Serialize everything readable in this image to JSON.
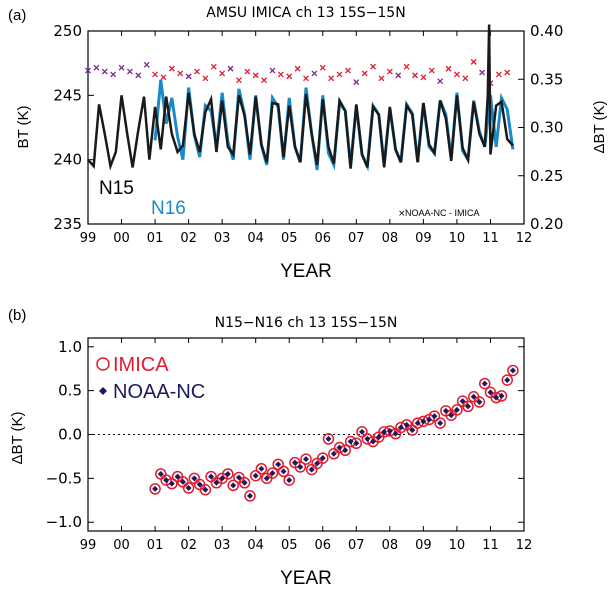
{
  "panels": {
    "a": "(a)",
    "b": "(b)"
  },
  "colors": {
    "n15": "#1a1a1a",
    "n16": "#1a8ac8",
    "diff_red": "#e31b2e",
    "diff_purple": "#7a2a8e",
    "imica": "#e31b2e",
    "noaa": "#1c1a5c"
  },
  "chart_data": [
    {
      "type": "line",
      "title": "AMSU IMICA ch 13 15S−15N",
      "xlabel": "YEAR",
      "ylabel": "BT (K)",
      "ylabel_right": "ΔBT (K)",
      "x_ticks": [
        "99",
        "00",
        "01",
        "02",
        "03",
        "04",
        "05",
        "06",
        "07",
        "08",
        "09",
        "10",
        "11",
        "12"
      ],
      "xlim": [
        1999,
        2012
      ],
      "y_ticks": [
        "235",
        "240",
        "245",
        "250"
      ],
      "ylim": [
        235,
        250
      ],
      "y2_ticks": [
        "0.20",
        "0.25",
        "0.30",
        "0.35",
        "0.40"
      ],
      "y2lim": [
        0.2,
        0.4
      ],
      "annotations": {
        "n15": "N15",
        "n16": "N16",
        "legend": "NOAA-NC - IMICA"
      },
      "series": [
        {
          "name": "N15",
          "x": [
            1999.0,
            1999.17,
            1999.33,
            1999.5,
            1999.67,
            1999.83,
            2000.0,
            2000.17,
            2000.33,
            2000.5,
            2000.67,
            2000.83,
            2001.0,
            2001.17,
            2001.33,
            2001.5,
            2001.67,
            2001.83,
            2002.0,
            2002.17,
            2002.33,
            2002.5,
            2002.67,
            2002.83,
            2003.0,
            2003.17,
            2003.33,
            2003.5,
            2003.67,
            2003.83,
            2004.0,
            2004.17,
            2004.33,
            2004.5,
            2004.67,
            2004.83,
            2005.0,
            2005.17,
            2005.33,
            2005.5,
            2005.67,
            2005.83,
            2006.0,
            2006.17,
            2006.33,
            2006.5,
            2006.67,
            2006.83,
            2007.0,
            2007.17,
            2007.33,
            2007.5,
            2007.67,
            2007.83,
            2008.0,
            2008.17,
            2008.33,
            2008.5,
            2008.67,
            2008.83,
            2009.0,
            2009.17,
            2009.33,
            2009.5,
            2009.67,
            2009.83,
            2010.0,
            2010.17,
            2010.33,
            2010.5,
            2010.67,
            2010.83,
            2010.92,
            2010.96,
            2011.0,
            2011.17,
            2011.33,
            2011.5,
            2011.67
          ],
          "y": [
            240,
            239.5,
            244.3,
            242,
            239.5,
            240.6,
            245.0,
            242,
            239.4,
            242.3,
            244.9,
            240,
            244.1,
            240.8,
            244.9,
            242,
            240.6,
            241.1,
            245.2,
            242,
            240.6,
            243.7,
            244.7,
            240.6,
            244.6,
            241,
            240.4,
            245,
            243.4,
            240.4,
            244.9,
            241.2,
            239.8,
            244.4,
            244.3,
            240.2,
            244.2,
            241.0,
            239.8,
            245.1,
            242,
            239.6,
            244.7,
            241,
            239.7,
            244.6,
            243.8,
            239.3,
            244.3,
            240.4,
            239.4,
            244.1,
            243.5,
            239.4,
            244.1,
            240.8,
            239.8,
            244.2,
            243.5,
            239.8,
            244.4,
            241.2,
            240.5,
            244.6,
            243.2,
            239.9,
            245.0,
            240.9,
            240.0,
            244.5,
            242.0,
            241.0,
            245.0,
            250.5,
            240.4,
            244.2,
            244.5,
            241.6,
            241.1
          ]
        },
        {
          "name": "N16",
          "x": [
            2001.0,
            2001.17,
            2001.33,
            2001.5,
            2001.67,
            2001.83,
            2002.0,
            2002.17,
            2002.33,
            2002.5,
            2002.67,
            2002.83,
            2003.0,
            2003.17,
            2003.33,
            2003.5,
            2003.67,
            2003.83,
            2004.0,
            2004.17,
            2004.33,
            2004.5,
            2004.67,
            2004.83,
            2005.0,
            2005.17,
            2005.33,
            2005.5,
            2005.67,
            2005.83,
            2006.0,
            2006.17,
            2006.33,
            2006.5,
            2006.67,
            2006.83,
            2007.0,
            2007.17,
            2007.33,
            2007.5,
            2007.67,
            2007.83,
            2008.0,
            2008.17,
            2008.33,
            2008.5,
            2008.67,
            2008.83,
            2009.0,
            2009.17,
            2009.33,
            2009.5,
            2009.67,
            2009.83,
            2010.0,
            2010.17,
            2010.33,
            2010.5,
            2010.67,
            2010.83,
            2011.0,
            2011.17,
            2011.33,
            2011.5,
            2011.67
          ],
          "y": [
            241.5,
            246.2,
            242.8,
            244.8,
            241.8,
            240.0,
            245.6,
            241.9,
            240.2,
            244.2,
            243.8,
            241.0,
            245.2,
            241.4,
            240.0,
            245.5,
            243.5,
            240.0,
            245.0,
            241.1,
            239.6,
            244.8,
            244.1,
            240.0,
            244.8,
            241.0,
            239.8,
            245.6,
            242.0,
            239.2,
            245.0,
            240.5,
            239.6,
            244.4,
            243.8,
            239.5,
            244.2,
            240.4,
            239.5,
            244.2,
            243.5,
            239.6,
            244.0,
            240.8,
            239.8,
            244.3,
            243.6,
            239.8,
            244.4,
            241.0,
            240.5,
            244.6,
            243.5,
            240.1,
            245.2,
            240.7,
            240.0,
            244.6,
            242.2,
            241.0,
            245.0,
            241.0,
            244.8,
            243.9,
            240.8
          ]
        },
        {
          "name": "NOAA-NC - IMICA",
          "axis": "right",
          "x": [
            1999.0,
            1999.25,
            1999.5,
            1999.75,
            2000.0,
            2000.25,
            2000.5,
            2000.75,
            2001.0,
            2001.25,
            2001.5,
            2001.75,
            2002.0,
            2002.25,
            2002.5,
            2002.75,
            2003.0,
            2003.25,
            2003.5,
            2003.75,
            2004.0,
            2004.25,
            2004.5,
            2004.75,
            2005.0,
            2005.25,
            2005.5,
            2005.75,
            2006.0,
            2006.25,
            2006.5,
            2006.75,
            2007.0,
            2007.25,
            2007.5,
            2007.75,
            2008.0,
            2008.25,
            2008.5,
            2008.75,
            2009.0,
            2009.25,
            2009.5,
            2009.75,
            2010.0,
            2010.25,
            2010.5,
            2010.75,
            2011.0,
            2011.25,
            2011.5
          ],
          "y": [
            0.359,
            0.362,
            0.358,
            0.355,
            0.362,
            0.358,
            0.354,
            0.365,
            0.355,
            0.352,
            0.361,
            0.356,
            0.353,
            0.358,
            0.351,
            0.363,
            0.356,
            0.361,
            0.349,
            0.358,
            0.354,
            0.349,
            0.359,
            0.355,
            0.353,
            0.361,
            0.351,
            0.356,
            0.362,
            0.351,
            0.355,
            0.359,
            0.347,
            0.356,
            0.363,
            0.351,
            0.358,
            0.354,
            0.363,
            0.354,
            0.352,
            0.359,
            0.348,
            0.361,
            0.355,
            0.351,
            0.368,
            0.357,
            0.346,
            0.355,
            0.357
          ]
        }
      ]
    },
    {
      "type": "scatter",
      "title": "N15−N16 ch 13 15S−15N",
      "xlabel": "YEAR",
      "ylabel": "ΔBT (K)",
      "x_ticks": [
        "99",
        "00",
        "01",
        "02",
        "03",
        "04",
        "05",
        "06",
        "07",
        "08",
        "09",
        "10",
        "11",
        "12"
      ],
      "xlim": [
        1999,
        2012
      ],
      "y_ticks": [
        "−1.0",
        "−0.5",
        "0.0",
        "0.5",
        "1.0"
      ],
      "ylim": [
        -1.1,
        1.1
      ],
      "reference_line": 0.0,
      "series": [
        {
          "name": "IMICA",
          "x": [
            2001.0,
            2001.17,
            2001.33,
            2001.5,
            2001.67,
            2001.83,
            2002.0,
            2002.17,
            2002.33,
            2002.5,
            2002.67,
            2002.83,
            2003.0,
            2003.17,
            2003.33,
            2003.5,
            2003.67,
            2003.83,
            2004.0,
            2004.17,
            2004.33,
            2004.5,
            2004.67,
            2004.83,
            2005.0,
            2005.17,
            2005.33,
            2005.5,
            2005.67,
            2005.83,
            2006.0,
            2006.17,
            2006.33,
            2006.5,
            2006.67,
            2006.83,
            2007.0,
            2007.17,
            2007.33,
            2007.5,
            2007.67,
            2007.83,
            2008.0,
            2008.17,
            2008.33,
            2008.5,
            2008.67,
            2008.83,
            2009.0,
            2009.17,
            2009.33,
            2009.5,
            2009.67,
            2009.83,
            2010.0,
            2010.17,
            2010.33,
            2010.5,
            2010.67,
            2010.83,
            2011.0,
            2011.17,
            2011.33,
            2011.5,
            2011.67
          ],
          "y": [
            -0.62,
            -0.45,
            -0.52,
            -0.56,
            -0.48,
            -0.54,
            -0.61,
            -0.5,
            -0.57,
            -0.63,
            -0.48,
            -0.55,
            -0.5,
            -0.45,
            -0.58,
            -0.49,
            -0.55,
            -0.7,
            -0.47,
            -0.39,
            -0.5,
            -0.44,
            -0.34,
            -0.42,
            -0.52,
            -0.32,
            -0.37,
            -0.28,
            -0.4,
            -0.33,
            -0.27,
            -0.05,
            -0.22,
            -0.15,
            -0.18,
            -0.08,
            -0.1,
            0.03,
            -0.05,
            -0.08,
            -0.03,
            0.03,
            0.04,
            0.01,
            0.08,
            0.11,
            0.05,
            0.13,
            0.15,
            0.17,
            0.21,
            0.13,
            0.27,
            0.22,
            0.28,
            0.38,
            0.32,
            0.43,
            0.37,
            0.58,
            0.48,
            0.42,
            0.44,
            0.62,
            0.73
          ]
        },
        {
          "name": "NOAA-NC",
          "x": [
            2001.0,
            2001.17,
            2001.33,
            2001.5,
            2001.67,
            2001.83,
            2002.0,
            2002.17,
            2002.33,
            2002.5,
            2002.67,
            2002.83,
            2003.0,
            2003.17,
            2003.33,
            2003.5,
            2003.67,
            2003.83,
            2004.0,
            2004.17,
            2004.33,
            2004.5,
            2004.67,
            2004.83,
            2005.0,
            2005.17,
            2005.33,
            2005.5,
            2005.67,
            2005.83,
            2006.0,
            2006.17,
            2006.33,
            2006.5,
            2006.67,
            2006.83,
            2007.0,
            2007.17,
            2007.33,
            2007.5,
            2007.67,
            2007.83,
            2008.0,
            2008.17,
            2008.33,
            2008.5,
            2008.67,
            2008.83,
            2009.0,
            2009.17,
            2009.33,
            2009.5,
            2009.67,
            2009.83,
            2010.0,
            2010.17,
            2010.33,
            2010.5,
            2010.67,
            2010.83,
            2011.0,
            2011.17,
            2011.33,
            2011.5,
            2011.67
          ],
          "y": [
            -0.62,
            -0.45,
            -0.52,
            -0.56,
            -0.48,
            -0.54,
            -0.61,
            -0.5,
            -0.57,
            -0.63,
            -0.48,
            -0.55,
            -0.5,
            -0.45,
            -0.58,
            -0.49,
            -0.55,
            -0.7,
            -0.47,
            -0.39,
            -0.5,
            -0.44,
            -0.34,
            -0.42,
            -0.52,
            -0.32,
            -0.37,
            -0.28,
            -0.4,
            -0.33,
            -0.27,
            -0.05,
            -0.22,
            -0.15,
            -0.18,
            -0.08,
            -0.1,
            0.03,
            -0.05,
            -0.08,
            -0.03,
            0.03,
            0.04,
            0.01,
            0.08,
            0.11,
            0.05,
            0.13,
            0.15,
            0.17,
            0.21,
            0.13,
            0.27,
            0.22,
            0.28,
            0.38,
            0.32,
            0.43,
            0.37,
            0.58,
            0.48,
            0.42,
            0.44,
            0.62,
            0.73
          ]
        }
      ]
    }
  ]
}
